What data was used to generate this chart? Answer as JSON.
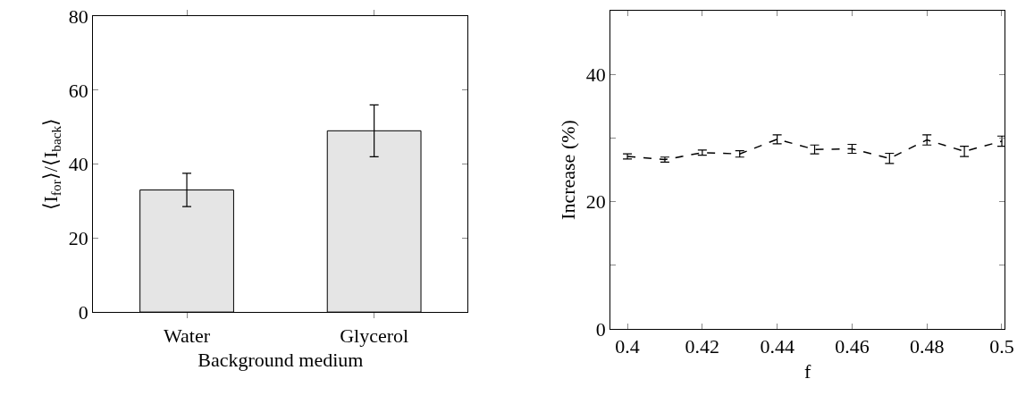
{
  "chart_data": [
    {
      "type": "bar",
      "xlabel": "Background medium",
      "ylabel": "⟨I$_{for}$⟩/⟨I$_{back}$⟩",
      "categories": [
        "Water",
        "Glycerol"
      ],
      "series": [
        {
          "color": "#e5e5e5",
          "values": [
            33,
            49
          ],
          "errors": [
            4.5,
            7
          ]
        }
      ],
      "ylim": [
        0,
        80
      ],
      "yticks": [
        0,
        20,
        40,
        60,
        80
      ]
    },
    {
      "type": "line",
      "xlabel": "f",
      "ylabel": "Increase (%)",
      "x": [
        0.4,
        0.41,
        0.42,
        0.43,
        0.44,
        0.45,
        0.46,
        0.47,
        0.48,
        0.49,
        0.5
      ],
      "series": [
        {
          "color": "#000000",
          "values": [
            27.1,
            26.6,
            27.7,
            27.5,
            29.8,
            28.2,
            28.3,
            26.8,
            29.7,
            27.9,
            29.5
          ],
          "errors": [
            0.4,
            0.4,
            0.4,
            0.5,
            0.7,
            0.7,
            0.7,
            0.8,
            0.8,
            0.8,
            0.8
          ]
        }
      ],
      "xlim": [
        0.3955,
        0.5007
      ],
      "xticks": [
        0.4,
        0.42,
        0.44,
        0.46,
        0.48,
        0.5
      ],
      "ylim": [
        0,
        50
      ],
      "yticks": [
        0,
        {
          "value": 10,
          "label": null
        },
        20,
        {
          "value": 30,
          "label": null
        },
        40
      ],
      "line_style": "dashed"
    }
  ]
}
